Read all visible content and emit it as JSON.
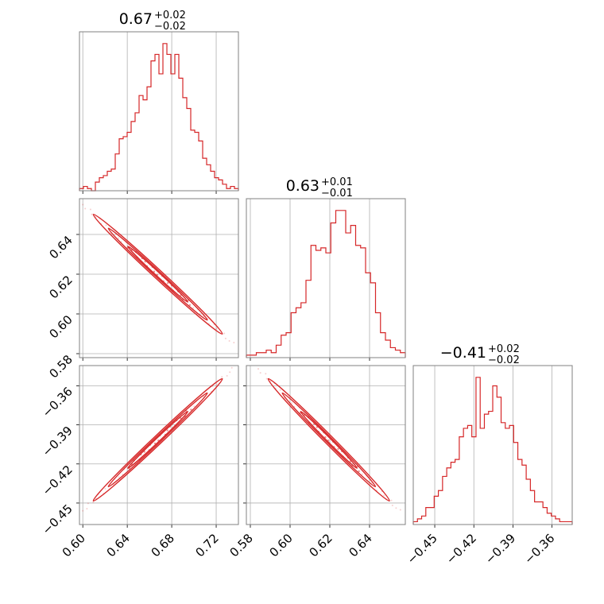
{
  "chart_data": {
    "type": "corner",
    "color": "#d62728",
    "grid": true,
    "parameters": [
      {
        "title": {
          "value": "0.67",
          "plus": "+0.02",
          "minus": "−0.02"
        },
        "range": [
          0.597,
          0.74
        ],
        "ticks": [
          0.6,
          0.64,
          0.68,
          0.72
        ],
        "tick_labels": [
          "0.60",
          "0.64",
          "0.68",
          "0.72"
        ],
        "hist_counts": [
          1,
          2,
          1,
          0,
          4,
          6,
          7,
          9,
          10,
          17,
          24,
          25,
          27,
          32,
          36,
          44,
          42,
          48,
          60,
          63,
          54,
          68,
          63,
          54,
          63,
          52,
          43,
          38,
          28,
          27,
          23,
          15,
          12,
          9,
          6,
          5,
          3,
          1,
          2,
          1
        ]
      },
      {
        "title": {
          "value": "0.63",
          "plus": "+0.01",
          "minus": "−0.01"
        },
        "range": [
          0.578,
          0.658
        ],
        "ticks": [
          0.58,
          0.6,
          0.62,
          0.64
        ],
        "tick_labels": [
          "0.58",
          "0.60",
          "0.62",
          "0.64"
        ],
        "hist_counts": [
          1,
          1,
          2,
          2,
          3,
          2,
          5,
          9,
          10,
          18,
          20,
          22,
          31,
          45,
          43,
          44,
          42,
          54,
          59,
          59,
          50,
          53,
          45,
          44,
          34,
          30,
          18,
          10,
          7,
          4,
          3,
          2
        ]
      },
      {
        "title": {
          "value": "−0.41",
          "plus": "+0.02",
          "minus": "−0.02"
        },
        "range": [
          -0.4665,
          -0.3445
        ],
        "ticks": [
          -0.45,
          -0.42,
          -0.39,
          -0.36
        ],
        "tick_labels": [
          "−0.45",
          "−0.42",
          "−0.39",
          "−0.36"
        ],
        "hist_counts": [
          1,
          2,
          3,
          6,
          6,
          10,
          12,
          17,
          20,
          22,
          23,
          31,
          34,
          35,
          31,
          52,
          34,
          39,
          40,
          49,
          45,
          36,
          34,
          35,
          29,
          23,
          21,
          16,
          12,
          8,
          8,
          6,
          4,
          3,
          2,
          1,
          1,
          1
        ]
      }
    ],
    "pairs": [
      {
        "row": 1,
        "col": 0,
        "from": [
          0.6,
          0.655
        ],
        "to": [
          0.735,
          0.585
        ]
      },
      {
        "row": 2,
        "col": 0,
        "from": [
          0.6,
          -0.456
        ],
        "to": [
          0.735,
          -0.347
        ]
      },
      {
        "row": 2,
        "col": 1,
        "from": [
          0.584,
          -0.347
        ],
        "to": [
          0.655,
          -0.456
        ]
      }
    ]
  }
}
